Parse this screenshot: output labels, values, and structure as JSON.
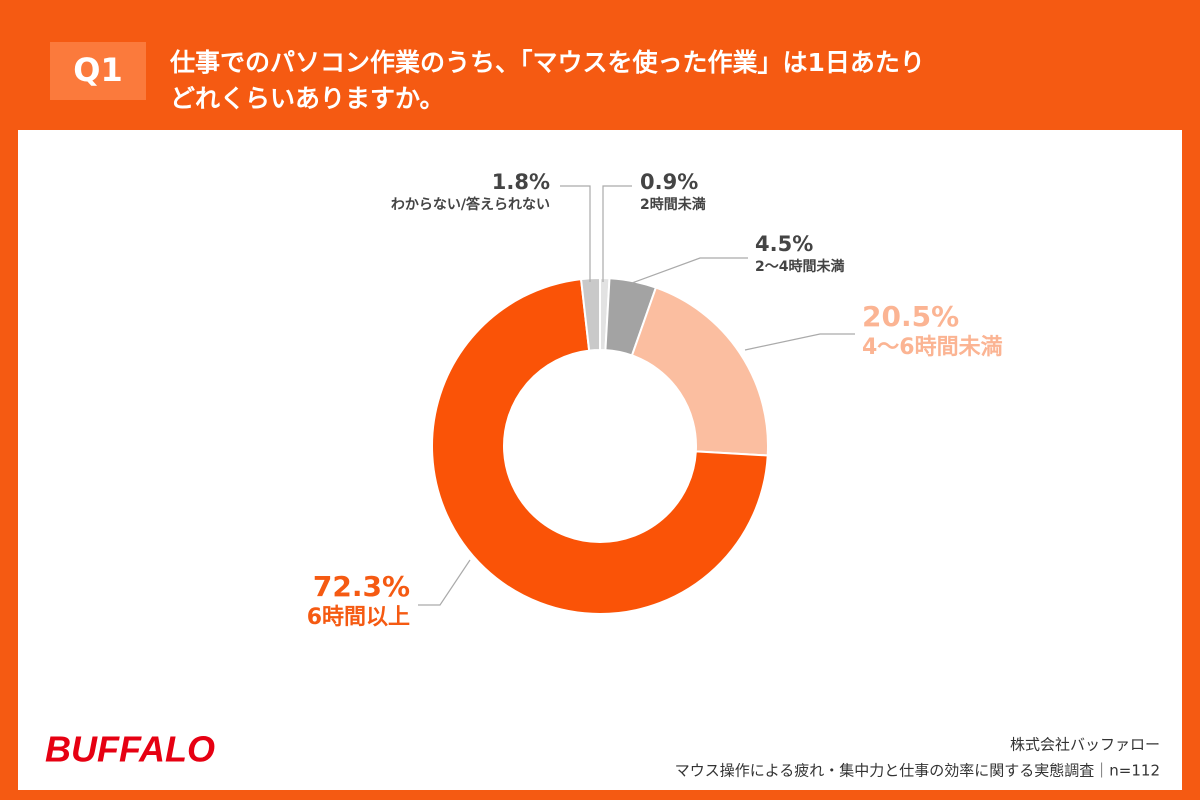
{
  "badge": "Q1",
  "title_lines": [
    "仕事でのパソコン作業のうち、「マウスを使った作業」は1日あたり",
    "どれくらいありますか。"
  ],
  "chart_data": {
    "type": "donut",
    "categories": [
      "2時間未満",
      "2〜4時間未満",
      "4〜6時間未満",
      "6時間以上",
      "わからない/答えられない"
    ],
    "values": [
      0.9,
      4.5,
      20.5,
      72.3,
      1.8
    ],
    "value_labels": [
      "0.9%",
      "4.5%",
      "20.5%",
      "72.3%",
      "1.8%"
    ],
    "colors": [
      "#e2e2e2",
      "#a3a3a3",
      "#fbbea0",
      "#fa5307",
      "#c9c9c9"
    ]
  },
  "footer": {
    "logo": "BUFFALO",
    "company": "株式会社バッファロー",
    "survey": "マウス操作による疲れ・集中力と仕事の効率に関する実態調査｜n=112"
  }
}
